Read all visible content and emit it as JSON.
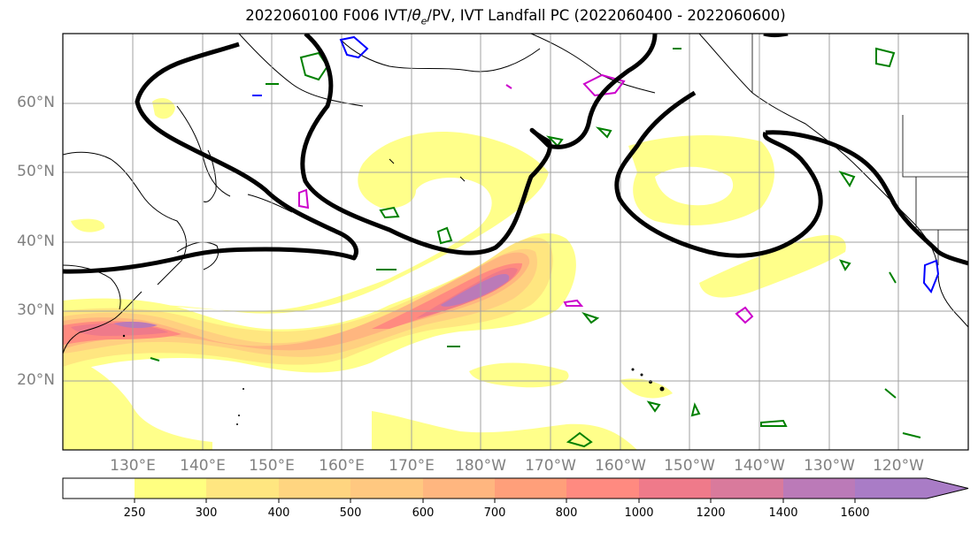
{
  "title_main": "2022060100 F006 IVT/",
  "title_theta": "θ",
  "title_sub": "e",
  "title_rest": "/PV, IVT Landfall PC (2022060400 - 2022060600)",
  "map": {
    "lat_labels": [
      "60°N",
      "50°N",
      "40°N",
      "30°N",
      "20°N"
    ],
    "lon_labels": [
      "130°E",
      "140°E",
      "150°E",
      "160°E",
      "170°E",
      "180°W",
      "170°W",
      "160°W",
      "150°W",
      "140°W",
      "130°W",
      "120°W"
    ],
    "gridline_color": "#a0a0a0",
    "label_color": "#808080"
  },
  "colorbar": {
    "ticks": [
      "250",
      "300",
      "400",
      "500",
      "600",
      "700",
      "800",
      "1000",
      "1200",
      "1400",
      "1600"
    ],
    "colors": [
      "#ffffff",
      "#ffff80",
      "#ffe680",
      "#ffd580",
      "#ffc880",
      "#ffb67f",
      "#ff9f7a",
      "#ff8a80",
      "#ef7a8a",
      "#d97a9c",
      "#bb7ab8",
      "#a97cc6"
    ]
  },
  "contour_colors": {
    "landfall_pc": "#000000",
    "theta_e": "#008000",
    "pv_blue": "#0000ff",
    "pv_magenta": "#cc00cc"
  }
}
